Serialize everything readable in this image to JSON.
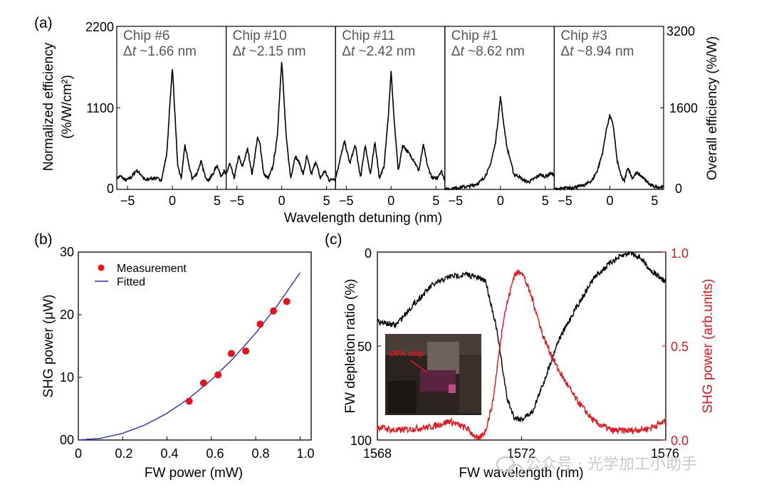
{
  "panel_labels": {
    "a": "(a)",
    "b": "(b)",
    "c": "(c)"
  },
  "colors": {
    "black": "#000000",
    "red": "#e8141b",
    "blue": "#2a2ac4",
    "chip_label": "#5a5a5a",
    "watermark": "#c9c9c9"
  },
  "watermark": {
    "icon": "wechat-icon",
    "text": "公众号 · 光学加工小助手"
  },
  "panel_a": {
    "ylabel": "Normalized efficiency (%/W/cm²)",
    "ylabel_line1": "Normalized efficiency",
    "ylabel_line2": "(%/W/cm²)",
    "y2label": "Overall efficiency (%/W)",
    "xlabel": "Wavelength detuning (nm)",
    "yticks": [
      "2200",
      "1100",
      "0"
    ],
    "y2ticks": [
      "3200",
      "1600",
      "0"
    ],
    "xticks": [
      "−5",
      "0",
      "5"
    ],
    "chips": [
      {
        "name": "Chip #6",
        "dt_value": "~1.66 nm"
      },
      {
        "name": "Chip #10",
        "dt_value": "~2.15 nm"
      },
      {
        "name": "Chip #11",
        "dt_value": "~2.42 nm"
      },
      {
        "name": "Chip #1",
        "dt_value": "~8.62 nm"
      },
      {
        "name": "Chip #3",
        "dt_value": "~8.94 nm"
      }
    ],
    "dt_symbol": "Δt"
  },
  "panel_b": {
    "xlabel": "FW power (mW)",
    "ylabel": "SHG power (μW)",
    "xticks": [
      "0",
      "0.2",
      "0.4",
      "0.6",
      "0.8",
      "1.0"
    ],
    "yticks": [
      "00",
      "10",
      "20",
      "30"
    ],
    "legend": {
      "measurement": "Measurement",
      "fitted": "Fitted"
    }
  },
  "panel_c": {
    "xlabel": "FW wavelength (nm)",
    "ylabel": "FW depletion ratio (%)",
    "y2label": "SHG power (arb.units)",
    "xticks": [
      "1568",
      "1572",
      "1576"
    ],
    "yticks": [
      "0",
      "50",
      "100"
    ],
    "y2ticks": [
      "1.0",
      "0.5",
      "0.0"
    ],
    "inset_label": "OPA chip"
  },
  "chart_data": [
    {
      "type": "line",
      "panel": "a",
      "xlabel": "Wavelength detuning (nm)",
      "ylabel": "Normalized efficiency (%/W/cm²)",
      "y2label": "Overall efficiency (%/W)",
      "xlim": [
        -6.2,
        6.0
      ],
      "ylim": [
        0,
        2200
      ],
      "y2lim": [
        0,
        3200
      ],
      "series": [
        {
          "name": "Chip #6",
          "dt": "~1.66 nm",
          "x": [
            -6.2,
            -5.8,
            -5.2,
            -4.6,
            -4.0,
            -3.5,
            -3.0,
            -2.4,
            -1.8,
            -1.2,
            -0.6,
            -0.3,
            0,
            0.3,
            0.6,
            1.0,
            1.4,
            1.8,
            2.2,
            2.7,
            3.2,
            3.6,
            4.0,
            4.5,
            5.0,
            5.4,
            5.8,
            6.0
          ],
          "y": [
            150,
            180,
            120,
            160,
            260,
            200,
            120,
            150,
            150,
            130,
            500,
            1100,
            1650,
            1000,
            300,
            150,
            600,
            350,
            150,
            200,
            380,
            200,
            120,
            200,
            330,
            180,
            250,
            180
          ]
        },
        {
          "name": "Chip #10",
          "dt": "~2.15 nm",
          "x": [
            -6.2,
            -5.8,
            -5.3,
            -4.8,
            -4.4,
            -3.8,
            -3.3,
            -2.7,
            -2.4,
            -2.0,
            -1.5,
            -1.0,
            -0.5,
            0,
            0.5,
            1.0,
            1.5,
            2.0,
            2.4,
            2.8,
            3.3,
            3.8,
            4.3,
            4.8,
            5.3,
            5.8,
            6.0
          ],
          "y": [
            200,
            350,
            150,
            450,
            300,
            550,
            200,
            700,
            600,
            200,
            150,
            300,
            700,
            1750,
            700,
            150,
            450,
            350,
            200,
            450,
            200,
            380,
            150,
            250,
            120,
            150,
            130
          ]
        },
        {
          "name": "Chip #11",
          "dt": "~2.42 nm",
          "x": [
            -6.2,
            -5.8,
            -5.2,
            -4.6,
            -4.0,
            -3.4,
            -2.9,
            -2.3,
            -1.8,
            -1.3,
            -0.8,
            -0.3,
            0,
            0.3,
            0.8,
            1.3,
            1.9,
            2.5,
            3.1,
            3.6,
            4.1,
            4.6,
            5.1,
            5.6,
            6.0
          ],
          "y": [
            150,
            350,
            650,
            350,
            600,
            150,
            600,
            200,
            640,
            150,
            300,
            1000,
            1600,
            1000,
            250,
            600,
            500,
            400,
            250,
            600,
            300,
            150,
            150,
            250,
            120
          ]
        },
        {
          "name": "Chip #1",
          "dt": "~8.62 nm",
          "x": [
            -6.2,
            -5.5,
            -4.5,
            -3.5,
            -2.5,
            -1.8,
            -1.2,
            -0.6,
            -0.3,
            0,
            0.3,
            0.7,
            1.1,
            1.5,
            2.0,
            2.6,
            3.2,
            3.8,
            4.4,
            5.0,
            5.6,
            6.0
          ],
          "y": [
            0,
            10,
            30,
            40,
            80,
            160,
            300,
            600,
            900,
            1250,
            950,
            580,
            400,
            200,
            180,
            120,
            100,
            150,
            200,
            170,
            220,
            200
          ]
        },
        {
          "name": "Chip #3",
          "dt": "~8.94 nm",
          "x": [
            -6.2,
            -5.5,
            -4.5,
            -3.5,
            -2.8,
            -2.0,
            -1.4,
            -0.8,
            -0.4,
            0,
            0.4,
            0.8,
            1.2,
            1.6,
            2.0,
            2.5,
            3.0,
            3.5,
            4.0,
            4.5,
            5.0,
            5.6,
            6.0
          ],
          "y": [
            0,
            10,
            20,
            40,
            60,
            120,
            250,
            500,
            800,
            1000,
            850,
            400,
            200,
            100,
            300,
            150,
            220,
            180,
            120,
            60,
            40,
            30,
            30
          ]
        }
      ]
    },
    {
      "type": "scatter",
      "panel": "b",
      "xlabel": "FW power (mW)",
      "ylabel": "SHG power (μW)",
      "xlim": [
        0,
        1.05
      ],
      "ylim": [
        0,
        30
      ],
      "series": [
        {
          "name": "Measurement",
          "x": [
            0.5,
            0.565,
            0.63,
            0.69,
            0.755,
            0.82,
            0.88,
            0.94
          ],
          "y": [
            6.2,
            9.1,
            10.4,
            13.8,
            14.2,
            18.5,
            20.6,
            22.1
          ]
        },
        {
          "name": "Fitted",
          "type": "line",
          "x": [
            0,
            0.1,
            0.2,
            0.3,
            0.4,
            0.5,
            0.6,
            0.7,
            0.8,
            0.9,
            1.0
          ],
          "y": [
            0,
            0.27,
            1.07,
            2.4,
            4.27,
            6.67,
            9.6,
            13.07,
            17.07,
            21.6,
            26.7
          ]
        }
      ]
    },
    {
      "type": "line",
      "panel": "c",
      "xlabel": "FW wavelength (nm)",
      "ylabel": "FW depletion ratio (%)",
      "y2label": "SHG power (arb.units)",
      "xlim": [
        1568,
        1576
      ],
      "ylim": [
        100,
        0
      ],
      "y2lim": [
        0,
        1.0
      ],
      "series": [
        {
          "axis": "left",
          "color": "#000000",
          "x": [
            1568,
            1568.5,
            1569,
            1569.5,
            1570,
            1570.5,
            1571,
            1571.3,
            1571.6,
            1571.8,
            1572.0,
            1572.3,
            1572.6,
            1573,
            1573.5,
            1574,
            1574.5,
            1575,
            1575.3,
            1575.6,
            1576
          ],
          "y": [
            37,
            39,
            28,
            18,
            13,
            12,
            15,
            40,
            78,
            88,
            89,
            85,
            70,
            48,
            30,
            14,
            5,
            0,
            3,
            10,
            16
          ]
        },
        {
          "axis": "right",
          "color": "#e8141b",
          "x": [
            1568,
            1568.5,
            1569,
            1569.5,
            1570,
            1570.5,
            1570.8,
            1571,
            1571.2,
            1571.5,
            1571.8,
            1572,
            1572.3,
            1572.6,
            1573,
            1573.5,
            1574,
            1574.5,
            1575,
            1575.5,
            1576
          ],
          "y": [
            0.07,
            0.05,
            0.06,
            0.07,
            0.1,
            0.06,
            0.0,
            0.05,
            0.2,
            0.65,
            0.88,
            0.9,
            0.75,
            0.55,
            0.38,
            0.22,
            0.1,
            0.05,
            0.05,
            0.06,
            0.1
          ]
        }
      ]
    }
  ]
}
